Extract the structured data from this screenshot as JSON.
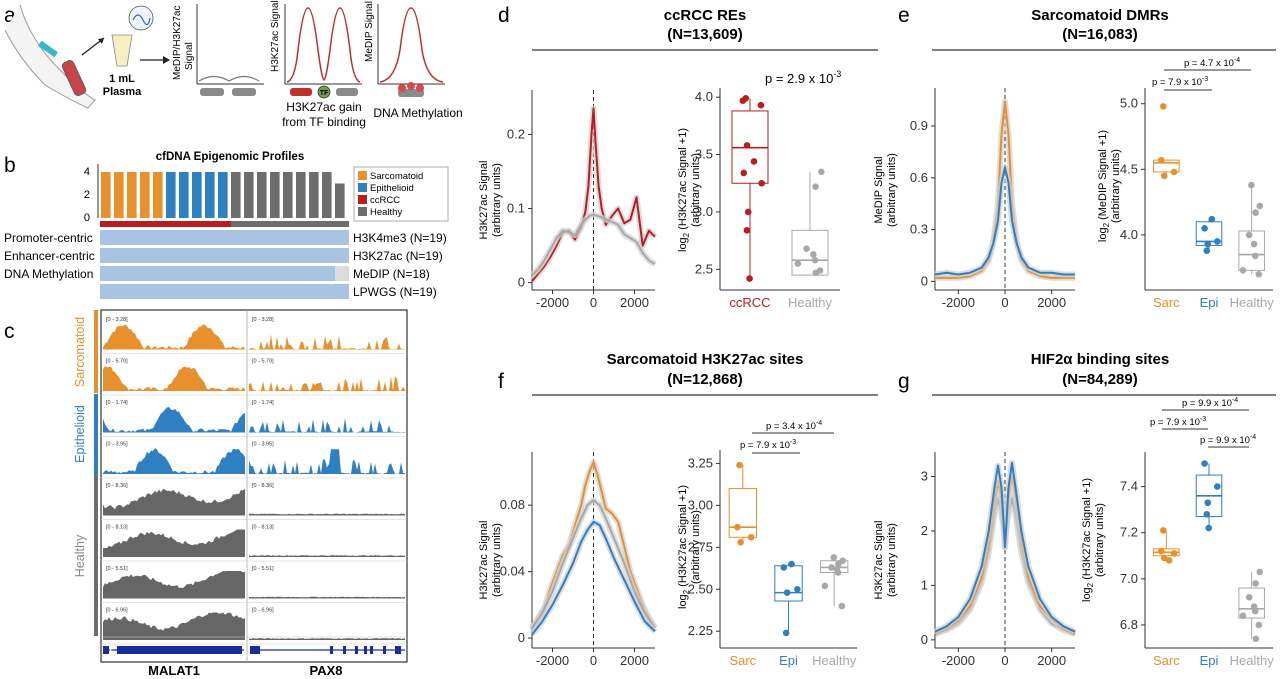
{
  "panel_a": {
    "label": "a",
    "plasma_vol": "1 mL",
    "plasma_word": "Plasma",
    "ylabel_1": "MeDIP/H3K27ac",
    "ylabel_2": "Signal",
    "ylabel_h3": "H3K27ac Signal",
    "ylabel_medip": "MeDIP Signal",
    "tf_label": "TF",
    "caption_h3_1": "H3K27ac gain",
    "caption_h3_2": "from TF binding",
    "caption_medip": "DNA Methylation"
  },
  "panel_b": {
    "label": "b",
    "title": "cfDNA Epigenomic Profiles",
    "y_ticks": [
      "0",
      "2",
      "4"
    ],
    "legend": [
      {
        "label": "Sarcomatoid",
        "color": "#e8902b"
      },
      {
        "label": "Epithelioid",
        "color": "#2f7fc3"
      },
      {
        "label": "ccRCC",
        "color": "#b81e20"
      },
      {
        "label": "Healthy",
        "color": "#6d6d6d"
      }
    ],
    "rows": [
      {
        "left": "Promoter-centric",
        "right": "H3K4me3 (N=19)"
      },
      {
        "left": "Enhancer-centric",
        "right": "H3K27ac (N=19)"
      },
      {
        "left": "DNA Methylation",
        "right": "MeDIP (N=18)"
      },
      {
        "left": "",
        "right": "LPWGS (N=19)"
      }
    ],
    "bar_groups": [
      "Sarcomatoid",
      "Epithelioid",
      "Healthy"
    ]
  },
  "panel_c": {
    "label": "c",
    "groups": [
      "Sarcomatoid",
      "Epithelioid",
      "Healthy"
    ],
    "range_left": [
      "[0 - 3.28]",
      "[0 - 5.70]",
      "[0 - 1.74]",
      "[0 - 3.95]",
      "[0 - 8.36]",
      "[0 - 8.13]",
      "[0 - 5.51]",
      "[0 - 6.96]"
    ],
    "range_right": [
      "[0 - 3.28]",
      "[0 - 5.70]",
      "[0 - 1.74]",
      "[0 - 3.95]",
      "[0 - 8.36]",
      "[0 - 8.13]",
      "[0 - 5.51]",
      "[0 - 6.96]"
    ],
    "gene_left": "MALAT1",
    "gene_right": "PAX8"
  },
  "panel_d": {
    "label": "d",
    "title": "ccRCC REs",
    "subtitle": "(N=13,609)",
    "p_text": "p = 2.9 x 10",
    "p_exp": "-3",
    "profile_ylabel_1": "H3K27ac Signal",
    "profile_ylabel_2": "(arbitrary units)",
    "box_ylabel_1": "log",
    "box_ylabel_sub": "2",
    "box_ylabel_2": " (H3K27ac Signal +1)",
    "box_ylabel_3": "(arbitrary units)",
    "chart_data": [
      {
        "type": "line",
        "title": "ccRCC REs",
        "x_ticks": [
          "-2000",
          "0",
          "2000"
        ],
        "y_ticks": [
          "0",
          "0.1",
          "0.2"
        ],
        "xlim": [
          -3000,
          3000
        ],
        "ylim": [
          -0.01,
          0.26
        ],
        "series": [
          {
            "name": "ccRCC",
            "color": "#b81e20",
            "x": [
              -3000,
              -2700,
              -2400,
              -2100,
              -1800,
              -1500,
              -1200,
              -900,
              -600,
              -400,
              -250,
              -100,
              0,
              100,
              250,
              400,
              600,
              900,
              1200,
              1500,
              1800,
              2100,
              2400,
              2700,
              3000
            ],
            "y": [
              0.002,
              0.012,
              0.022,
              0.035,
              0.05,
              0.068,
              0.07,
              0.058,
              0.075,
              0.095,
              0.13,
              0.2,
              0.235,
              0.19,
              0.13,
              0.1,
              0.078,
              0.09,
              0.1,
              0.08,
              0.085,
              0.115,
              0.05,
              0.07,
              0.062
            ]
          },
          {
            "name": "Healthy",
            "color": "#a8a8a8",
            "x": [
              -3000,
              -2700,
              -2400,
              -2100,
              -1800,
              -1500,
              -1200,
              -900,
              -600,
              -400,
              -200,
              0,
              200,
              400,
              600,
              900,
              1200,
              1500,
              1800,
              2100,
              2400,
              2700,
              3000
            ],
            "y": [
              0.01,
              0.018,
              0.03,
              0.045,
              0.06,
              0.07,
              0.068,
              0.064,
              0.078,
              0.085,
              0.09,
              0.092,
              0.09,
              0.088,
              0.085,
              0.082,
              0.078,
              0.065,
              0.06,
              0.055,
              0.04,
              0.03,
              0.025
            ]
          }
        ]
      },
      {
        "type": "box",
        "categories": [
          "ccRCC",
          "Healthy"
        ],
        "category_colors": [
          "#b81e20",
          "#a8a8a8"
        ],
        "y_ticks": [
          "2.5",
          "3.0",
          "3.5",
          "4.0"
        ],
        "ylim": [
          2.32,
          4.08
        ],
        "boxes": [
          {
            "q1": 3.25,
            "median": 3.56,
            "q3": 3.88,
            "min": 2.42,
            "max": 3.99
          },
          {
            "q1": 2.45,
            "median": 2.58,
            "q3": 2.84,
            "min": 2.45,
            "max": 3.35
          }
        ],
        "points": [
          [
            3.99,
            3.97,
            3.93,
            3.58,
            3.44,
            3.34,
            3.25,
            3.0,
            2.84,
            2.42
          ],
          [
            3.35,
            3.22,
            2.68,
            2.63,
            2.58,
            2.55,
            2.49,
            2.47
          ]
        ]
      }
    ]
  },
  "panel_e": {
    "label": "e",
    "title": "Sarcomatoid DMRs",
    "subtitle": "(N=16,083)",
    "comparisons": [
      {
        "text": "p = 4.7 x 10",
        "exp": "-4"
      },
      {
        "text": "p = 7.9 x 10",
        "exp": "-3"
      }
    ],
    "profile_ylabel_1": "MeDIP Signal",
    "profile_ylabel_2": "(arbitrary units)",
    "box_ylabel_1": "log",
    "box_ylabel_sub": "2",
    "box_ylabel_2": " (MeDIP Signal +1)",
    "box_ylabel_3": "(arbitrary units)",
    "chart_data": [
      {
        "type": "line",
        "x_ticks": [
          "-2000",
          "0",
          "2000"
        ],
        "y_ticks": [
          "0",
          "0.3",
          "0.6",
          "0.9"
        ],
        "xlim": [
          -3000,
          3000
        ],
        "ylim": [
          -0.05,
          1.12
        ],
        "series": [
          {
            "name": "Sarcomatoid",
            "color": "#e8902b",
            "x": [
              -3000,
              -2500,
              -2000,
              -1500,
              -1000,
              -700,
              -500,
              -300,
              -150,
              0,
              150,
              300,
              500,
              700,
              1000,
              1500,
              2000,
              2500,
              3000
            ],
            "y": [
              0.02,
              0.02,
              0.02,
              0.03,
              0.06,
              0.12,
              0.23,
              0.45,
              0.85,
              1.04,
              0.85,
              0.45,
              0.23,
              0.12,
              0.06,
              0.03,
              0.02,
              0.02,
              0.02
            ]
          },
          {
            "name": "Epithelioid",
            "color": "#2f7fc3",
            "x": [
              -3000,
              -2500,
              -2000,
              -1500,
              -1000,
              -700,
              -500,
              -300,
              -150,
              0,
              150,
              300,
              500,
              700,
              1000,
              1500,
              2000,
              2500,
              3000
            ],
            "y": [
              0.04,
              0.05,
              0.04,
              0.05,
              0.08,
              0.14,
              0.22,
              0.35,
              0.57,
              0.66,
              0.57,
              0.35,
              0.22,
              0.14,
              0.08,
              0.05,
              0.05,
              0.04,
              0.04
            ]
          }
        ]
      },
      {
        "type": "box",
        "categories": [
          "Sarc",
          "Epi",
          "Healthy"
        ],
        "category_colors": [
          "#e8902b",
          "#2f7fc3",
          "#a8a8a8"
        ],
        "y_ticks": [
          "4.0",
          "4.5",
          "5.0"
        ],
        "ylim": [
          3.58,
          5.12
        ],
        "boxes": [
          {
            "q1": 4.48,
            "median": 4.55,
            "q3": 4.57,
            "min": 4.45,
            "max": 4.57
          },
          {
            "q1": 3.92,
            "median": 3.95,
            "q3": 4.1,
            "min": 3.88,
            "max": 4.12
          },
          {
            "q1": 3.73,
            "median": 3.85,
            "q3": 4.03,
            "min": 3.7,
            "max": 4.38
          }
        ],
        "points": [
          [
            4.98,
            4.57,
            4.48,
            4.45
          ],
          [
            4.12,
            4.05,
            3.95,
            3.93,
            3.88
          ],
          [
            4.38,
            4.22,
            4.17,
            4.0,
            3.93,
            3.84,
            3.73,
            3.7
          ]
        ]
      }
    ]
  },
  "panel_f": {
    "label": "f",
    "title": "Sarcomatoid H3K27ac sites",
    "subtitle": "(N=12,868)",
    "comparisons": [
      {
        "text": "p = 3.4 x 10",
        "exp": "-4"
      },
      {
        "text": "p = 7.9 x 10",
        "exp": "-3"
      }
    ],
    "profile_ylabel_1": "H3K27ac Signal",
    "profile_ylabel_2": "(arbitrary units)",
    "box_ylabel_1": "log",
    "box_ylabel_sub": "2",
    "box_ylabel_2": " (H3K27ac Signal +1)",
    "box_ylabel_3": "(arbitrary units)",
    "chart_data": [
      {
        "type": "line",
        "x_ticks": [
          "-2000",
          "0",
          "2000"
        ],
        "y_ticks": [
          "0",
          "0.04",
          "0.08"
        ],
        "xlim": [
          -3000,
          3000
        ],
        "ylim": [
          -0.006,
          0.112
        ],
        "series": [
          {
            "name": "Sarcomatoid",
            "color": "#e8902b",
            "x": [
              -3000,
              -2700,
              -2400,
              -2100,
              -1800,
              -1500,
              -1200,
              -900,
              -600,
              -400,
              -200,
              0,
              200,
              400,
              600,
              900,
              1200,
              1500,
              1800,
              2100,
              2400,
              2700,
              3000
            ],
            "y": [
              0.005,
              0.012,
              0.018,
              0.03,
              0.04,
              0.05,
              0.056,
              0.068,
              0.08,
              0.092,
              0.1,
              0.106,
              0.098,
              0.088,
              0.078,
              0.075,
              0.07,
              0.055,
              0.04,
              0.03,
              0.02,
              0.012,
              0.006
            ]
          },
          {
            "name": "Healthy",
            "color": "#a8a8a8",
            "x": [
              -3000,
              -2500,
              -2000,
              -1500,
              -1000,
              -600,
              -300,
              0,
              300,
              600,
              1000,
              1500,
              2000,
              2500,
              3000
            ],
            "y": [
              0.006,
              0.015,
              0.028,
              0.045,
              0.06,
              0.072,
              0.08,
              0.083,
              0.08,
              0.072,
              0.06,
              0.045,
              0.028,
              0.015,
              0.006
            ]
          },
          {
            "name": "Epithelioid",
            "color": "#2f7fc3",
            "x": [
              -3000,
              -2500,
              -2000,
              -1500,
              -1000,
              -600,
              -300,
              0,
              300,
              600,
              1000,
              1500,
              2000,
              2500,
              3000
            ],
            "y": [
              0.002,
              0.01,
              0.02,
              0.032,
              0.045,
              0.058,
              0.065,
              0.07,
              0.068,
              0.06,
              0.048,
              0.035,
              0.022,
              0.01,
              0.004
            ]
          }
        ]
      },
      {
        "type": "box",
        "categories": [
          "Sarc",
          "Epi",
          "Healthy"
        ],
        "category_colors": [
          "#e8902b",
          "#2f7fc3",
          "#a8a8a8"
        ],
        "y_ticks": [
          "2.25",
          "2.50",
          "2.75",
          "3.00",
          "3.25"
        ],
        "ylim": [
          2.15,
          3.33
        ],
        "boxes": [
          {
            "q1": 2.81,
            "median": 2.87,
            "q3": 3.1,
            "min": 2.78,
            "max": 3.24
          },
          {
            "q1": 2.43,
            "median": 2.48,
            "q3": 2.64,
            "min": 2.24,
            "max": 2.65
          },
          {
            "q1": 2.6,
            "median": 2.63,
            "q3": 2.67,
            "min": 2.4,
            "max": 2.69
          }
        ],
        "points": [
          [
            3.24,
            2.87,
            2.81,
            2.78
          ],
          [
            2.65,
            2.63,
            2.5,
            2.48,
            2.24
          ],
          [
            2.69,
            2.67,
            2.65,
            2.63,
            2.62,
            2.6,
            2.52,
            2.4
          ]
        ]
      }
    ]
  },
  "panel_g": {
    "label": "g",
    "title": "HIF2α binding sites",
    "subtitle": "(N=84,289)",
    "comparisons": [
      {
        "text": "p = 9.9 x 10",
        "exp": "-4"
      },
      {
        "text": "p = 7.9 x 10",
        "exp": "-3"
      },
      {
        "text": "p = 9.9 x 10",
        "exp": "-4"
      }
    ],
    "profile_ylabel_1": "H3K27ac Signal",
    "profile_ylabel_2": "(arbitrary units)",
    "box_ylabel_1": "log",
    "box_ylabel_sub": "2",
    "box_ylabel_2": " (H3K27ac Signal +1)",
    "box_ylabel_3": "(arbitrary units)",
    "chart_data": [
      {
        "type": "line",
        "x_ticks": [
          "-2000",
          "0",
          "2000"
        ],
        "y_ticks": [
          "0",
          "1",
          "2",
          "3"
        ],
        "xlim": [
          -3000,
          3000
        ],
        "ylim": [
          -0.15,
          3.45
        ],
        "series": [
          {
            "name": "Healthy",
            "color": "#a8a8a8",
            "x": [
              -3000,
              -2500,
              -2000,
              -1500,
              -1000,
              -700,
              -450,
              -300,
              -150,
              0,
              150,
              300,
              450,
              700,
              1000,
              1500,
              2000,
              2500,
              3000
            ],
            "y": [
              0.12,
              0.18,
              0.3,
              0.55,
              1.05,
              1.6,
              2.3,
              2.6,
              2.3,
              1.95,
              2.3,
              2.6,
              2.3,
              1.6,
              1.05,
              0.55,
              0.3,
              0.18,
              0.12
            ]
          },
          {
            "name": "Sarcomatoid",
            "color": "#e8902b",
            "x": [
              -3000,
              -2500,
              -2000,
              -1500,
              -1000,
              -700,
              -450,
              -300,
              -150,
              0,
              150,
              300,
              450,
              700,
              1000,
              1500,
              2000,
              2500,
              3000
            ],
            "y": [
              0.1,
              0.2,
              0.35,
              0.62,
              1.15,
              1.75,
              2.5,
              2.9,
              2.6,
              1.7,
              2.6,
              3.0,
              2.6,
              1.8,
              1.15,
              0.62,
              0.38,
              0.2,
              0.1
            ]
          },
          {
            "name": "Epithelioid",
            "color": "#2f7fc3",
            "x": [
              -3000,
              -2500,
              -2000,
              -1500,
              -1000,
              -700,
              -450,
              -300,
              -150,
              0,
              150,
              300,
              450,
              700,
              1000,
              1500,
              2000,
              2500,
              3000
            ],
            "y": [
              0.15,
              0.25,
              0.42,
              0.75,
              1.35,
              2.0,
              2.8,
              3.2,
              2.8,
              1.7,
              2.8,
              3.25,
              2.8,
              2.0,
              1.35,
              0.75,
              0.42,
              0.25,
              0.15
            ]
          }
        ]
      },
      {
        "type": "box",
        "categories": [
          "Sarc",
          "Epi",
          "Healthy"
        ],
        "category_colors": [
          "#e8902b",
          "#2f7fc3",
          "#a8a8a8"
        ],
        "y_ticks": [
          "6.8",
          "7.0",
          "7.2",
          "7.4"
        ],
        "ylim": [
          6.7,
          7.55
        ],
        "boxes": [
          {
            "q1": 7.1,
            "median": 7.115,
            "q3": 7.13,
            "min": 7.08,
            "max": 7.21
          },
          {
            "q1": 7.27,
            "median": 7.36,
            "q3": 7.45,
            "min": 7.22,
            "max": 7.5
          },
          {
            "q1": 6.83,
            "median": 6.87,
            "q3": 6.96,
            "min": 6.74,
            "max": 7.03
          }
        ],
        "points": [
          [
            7.21,
            7.12,
            7.11,
            7.09,
            7.08
          ],
          [
            7.5,
            7.4,
            7.33,
            7.28,
            7.22
          ],
          [
            7.03,
            6.98,
            6.92,
            6.88,
            6.86,
            6.84,
            6.8,
            6.74
          ]
        ]
      }
    ]
  }
}
